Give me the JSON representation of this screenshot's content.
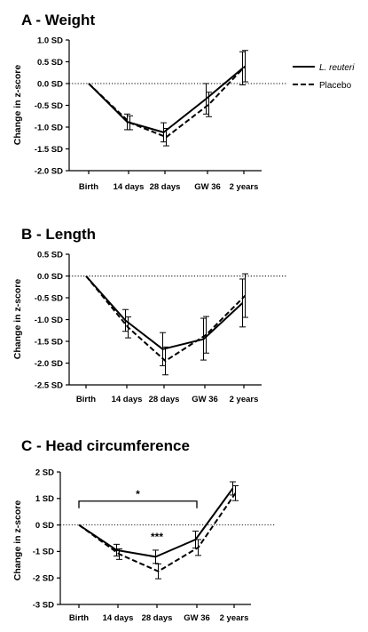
{
  "chart_data": [
    {
      "type": "line",
      "title": "A - Weight",
      "ylabel": "Change in z-score",
      "categories": [
        "Birth",
        "14 days",
        "28 days",
        "GW 36",
        "2 years"
      ],
      "ylim": [
        -2.0,
        1.0
      ],
      "yticks": [
        "1.0 SD",
        "0.5 SD",
        "0.0 SD",
        "-0.5 SD",
        "-1.0 SD",
        "-1.5 SD",
        "-2.0 SD"
      ],
      "yticks_values": [
        1.0,
        0.5,
        0.0,
        -0.5,
        -1.0,
        -1.5,
        -2.0
      ],
      "series": [
        {
          "name": "L. reuteri",
          "style": "solid",
          "values": [
            0.0,
            -0.88,
            -1.12,
            -0.35,
            0.35
          ],
          "err": [
            0.0,
            0.18,
            0.22,
            0.35,
            0.38
          ]
        },
        {
          "name": "Placebo",
          "style": "dashed",
          "values": [
            0.0,
            -0.9,
            -1.23,
            -0.48,
            0.4
          ],
          "err": [
            0.0,
            0.16,
            0.2,
            0.28,
            0.36
          ]
        }
      ],
      "reference_line": 0,
      "legend_position": "right"
    },
    {
      "type": "line",
      "title": "B - Length",
      "ylabel": "Change in z-score",
      "categories": [
        "Birth",
        "14 days",
        "28 days",
        "GW 36",
        "2 years"
      ],
      "ylim": [
        -2.5,
        0.5
      ],
      "yticks": [
        "0.5 SD",
        "0.0 SD",
        "-0.5 SD",
        "-1.0 SD",
        "-1.5 SD",
        "-2.0 SD",
        "-2.5 SD"
      ],
      "yticks_values": [
        0.5,
        0.0,
        -0.5,
        -1.0,
        -1.5,
        -2.0,
        -2.5
      ],
      "series": [
        {
          "name": "L. reuteri",
          "style": "solid",
          "values": [
            0.0,
            -1.02,
            -1.68,
            -1.45,
            -0.62
          ],
          "err": [
            0.0,
            0.25,
            0.38,
            0.48,
            0.55
          ]
        },
        {
          "name": "Placebo",
          "style": "dashed",
          "values": [
            0.0,
            -1.18,
            -1.95,
            -1.35,
            -0.45
          ],
          "err": [
            0.0,
            0.24,
            0.32,
            0.42,
            0.5
          ]
        }
      ],
      "reference_line": 0
    },
    {
      "type": "line",
      "title": "C - Head circumference",
      "ylabel": "Change in z-score",
      "categories": [
        "Birth",
        "14 days",
        "28 days",
        "GW 36",
        "2 years"
      ],
      "ylim": [
        -3,
        2
      ],
      "yticks": [
        "2 SD",
        "1 SD",
        "0 SD",
        "-1 SD",
        "-2 SD",
        "-3 SD"
      ],
      "yticks_values": [
        2,
        1,
        0,
        -1,
        -2,
        -3
      ],
      "series": [
        {
          "name": "L. reuteri",
          "style": "solid",
          "values": [
            0.0,
            -0.95,
            -1.2,
            -0.55,
            1.38
          ],
          "err": [
            0.0,
            0.22,
            0.25,
            0.32,
            0.25
          ]
        },
        {
          "name": "Placebo",
          "style": "dashed",
          "values": [
            0.0,
            -1.1,
            -1.75,
            -0.85,
            1.2
          ],
          "err": [
            0.0,
            0.2,
            0.28,
            0.3,
            0.28
          ]
        }
      ],
      "reference_line": 0,
      "annotations": [
        {
          "text": "*",
          "type": "bracket",
          "from": "Birth",
          "to": "GW 36",
          "y": 0.9
        },
        {
          "text": "***",
          "at": "28 days",
          "y": -0.45
        }
      ]
    }
  ],
  "legend": {
    "items": [
      {
        "label": "L. reuteri",
        "style": "solid",
        "italic": true
      },
      {
        "label": "Placebo",
        "style": "dashed",
        "italic": false
      }
    ]
  }
}
